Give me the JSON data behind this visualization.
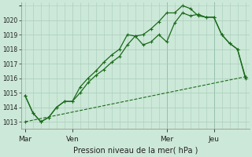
{
  "xlabel": "Pression niveau de la mer( hPa )",
  "background_color": "#cce8d8",
  "grid_color": "#aaccbb",
  "line_color_main": "#1a6b1a",
  "ylim": [
    1012.5,
    1021.2
  ],
  "yticks": [
    1013,
    1014,
    1015,
    1016,
    1017,
    1018,
    1019,
    1020
  ],
  "day_labels": [
    "Mar",
    "Ven",
    "Mer",
    "Jeu"
  ],
  "day_positions": [
    0,
    6,
    18,
    24
  ],
  "vline_positions": [
    18,
    24
  ],
  "series1_x": [
    0,
    1,
    2,
    3,
    4,
    5,
    6,
    7,
    8,
    9,
    10,
    11,
    12,
    13,
    14,
    15,
    16,
    17,
    18,
    19,
    20,
    21,
    22,
    23,
    24,
    25,
    26,
    27,
    28
  ],
  "series1_y": [
    1014.8,
    1013.6,
    1013.0,
    1013.3,
    1014.0,
    1014.4,
    1014.4,
    1015.0,
    1015.7,
    1016.2,
    1016.6,
    1017.1,
    1017.5,
    1018.3,
    1018.9,
    1018.3,
    1018.5,
    1019.0,
    1018.5,
    1019.8,
    1020.5,
    1020.3,
    1020.4,
    1020.2,
    1020.2,
    1019.0,
    1018.4,
    1018.0,
    1016.0
  ],
  "series2_x": [
    0,
    1,
    2,
    3,
    4,
    5,
    6,
    7,
    8,
    9,
    10,
    11,
    12,
    13,
    14,
    15,
    16,
    17,
    18,
    19,
    20,
    21,
    22,
    23,
    24,
    25,
    26,
    27,
    28
  ],
  "series2_y": [
    1014.8,
    1013.6,
    1013.0,
    1013.3,
    1014.0,
    1014.4,
    1014.4,
    1015.4,
    1016.0,
    1016.5,
    1017.1,
    1017.6,
    1018.0,
    1019.0,
    1018.9,
    1019.0,
    1019.4,
    1019.9,
    1020.5,
    1020.5,
    1021.0,
    1020.8,
    1020.3,
    1020.2,
    1020.2,
    1019.0,
    1018.4,
    1018.0,
    1016.1
  ],
  "series3_x": [
    0,
    28
  ],
  "series3_y": [
    1013.0,
    1016.1
  ],
  "xlim": [
    -0.5,
    28.5
  ]
}
